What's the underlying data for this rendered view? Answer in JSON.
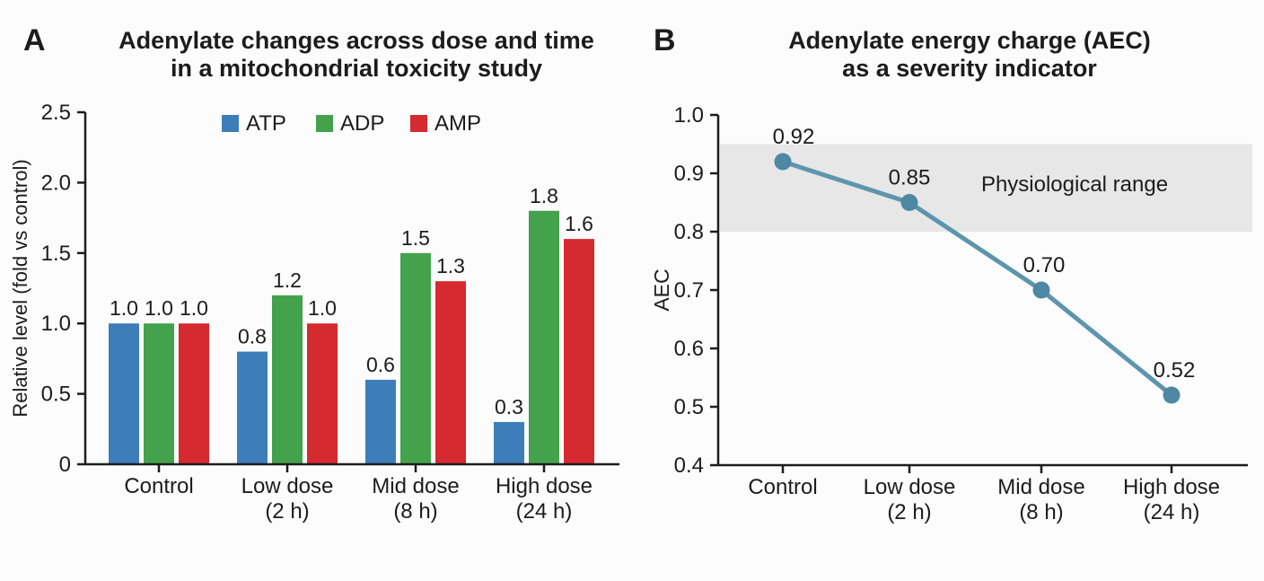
{
  "page": {
    "background": "#fcfcfc",
    "text_color": "#1c1c1c"
  },
  "panels": [
    {
      "label": "A",
      "title_lines": [
        "Adenylate changes across dose and time",
        "in a mitochondrial toxicity study"
      ]
    },
    {
      "label": "B",
      "title_lines": [
        "Adenylate energy charge (AEC)",
        "as a severity indicator"
      ]
    }
  ],
  "chart_data": [
    {
      "type": "bar",
      "panel": "A",
      "title": "Adenylate changes across dose and time in a mitochondrial toxicity study",
      "ylabel": "Relative level (fold vs control)",
      "ylim": [
        0,
        2.5
      ],
      "yticks": [
        "0",
        "0.5",
        "1.0",
        "1.5",
        "2.0",
        "2.5"
      ],
      "grid": false,
      "legend_position": "top-center",
      "categories": [
        "Control",
        "Low dose (2 h)",
        "Mid dose (8 h)",
        "High dose (24 h)"
      ],
      "category_lines": [
        [
          "Control"
        ],
        [
          "Low dose",
          "(2 h)"
        ],
        [
          "Mid dose",
          "(8 h)"
        ],
        [
          "High dose",
          "(24 h)"
        ]
      ],
      "series": [
        {
          "name": "ATP",
          "color": "#3d7eba",
          "values": [
            1.0,
            0.8,
            0.6,
            0.3
          ],
          "labels": [
            "1.0",
            "0.8",
            "0.6",
            "0.3"
          ]
        },
        {
          "name": "ADP",
          "color": "#44a24d",
          "values": [
            1.0,
            1.2,
            1.5,
            1.8
          ],
          "labels": [
            "1.0",
            "1.2",
            "1.5",
            "1.8"
          ]
        },
        {
          "name": "AMP",
          "color": "#d52a2f",
          "values": [
            1.0,
            1.0,
            1.3,
            1.6
          ],
          "labels": [
            "1.0",
            "1.0",
            "1.3",
            "1.6"
          ]
        }
      ]
    },
    {
      "type": "line",
      "panel": "B",
      "title": "Adenylate energy charge (AEC) as a severity indicator",
      "ylabel": "AEC",
      "ylim": [
        0.4,
        1.0
      ],
      "yticks": [
        "0.4",
        "0.5",
        "0.6",
        "0.7",
        "0.8",
        "0.9",
        "1.0"
      ],
      "grid": false,
      "categories": [
        "Control",
        "Low dose (2 h)",
        "Mid dose (8 h)",
        "High dose (24 h)"
      ],
      "category_lines": [
        [
          "Control"
        ],
        [
          "Low dose",
          "(2 h)"
        ],
        [
          "Mid dose",
          "(8 h)"
        ],
        [
          "High dose",
          "(24 h)"
        ]
      ],
      "series": [
        {
          "name": "AEC",
          "line_color": "#5d95ad",
          "marker_color": "#4e88a3",
          "values": [
            0.92,
            0.85,
            0.7,
            0.52
          ],
          "point_labels": [
            "0.92",
            "0.85",
            "0.70",
            "0.52"
          ]
        }
      ],
      "band": {
        "from": 0.8,
        "to": 0.95,
        "color": "#e7e7e7",
        "label": "Physiological range"
      }
    }
  ]
}
